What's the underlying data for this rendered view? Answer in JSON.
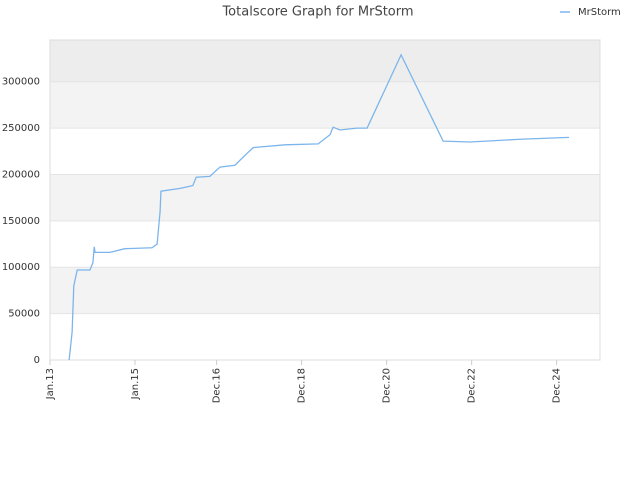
{
  "chart_data": {
    "type": "line",
    "title": "Totalscore Graph for MrStorm",
    "x": [
      2013.45,
      2013.52,
      2013.56,
      2013.64,
      2013.94,
      2014.01,
      2014.04,
      2014.06,
      2014.41,
      2014.76,
      2015.4,
      2015.52,
      2015.59,
      2015.61,
      2016.06,
      2016.36,
      2016.44,
      2016.76,
      2017.0,
      2017.35,
      2017.64,
      2017.78,
      2018.53,
      2019.31,
      2019.59,
      2019.66,
      2019.82,
      2020.22,
      2020.46,
      2021.26,
      2022.25,
      2022.88,
      2024.06,
      2025.21
    ],
    "series": [
      {
        "name": "MrStorm",
        "color": "#7cb5ec",
        "values": [
          0,
          30000,
          80000,
          97000,
          97000,
          105000,
          122000,
          116000,
          116000,
          120000,
          121000,
          125000,
          160000,
          182000,
          185000,
          188000,
          197000,
          198000,
          208000,
          210000,
          223000,
          229000,
          232000,
          233000,
          243000,
          251000,
          248000,
          250000,
          250000,
          329000,
          236000,
          235000,
          238000,
          240000
        ]
      }
    ],
    "xlim": [
      2013.0,
      2025.94
    ],
    "xticks": [
      {
        "value": 2013.0,
        "label": "Jan.13"
      },
      {
        "value": 2015.0,
        "label": "Jan.15"
      },
      {
        "value": 2016.92,
        "label": "Dec.16"
      },
      {
        "value": 2018.92,
        "label": "Dec.18"
      },
      {
        "value": 2020.92,
        "label": "Dec.20"
      },
      {
        "value": 2022.92,
        "label": "Dec.22"
      },
      {
        "value": 2024.92,
        "label": "Dec.24"
      }
    ],
    "ylim": [
      0,
      345000
    ],
    "yticks": [
      0,
      50000,
      100000,
      150000,
      200000,
      250000,
      300000
    ],
    "grid": true,
    "legend": "top-right"
  }
}
